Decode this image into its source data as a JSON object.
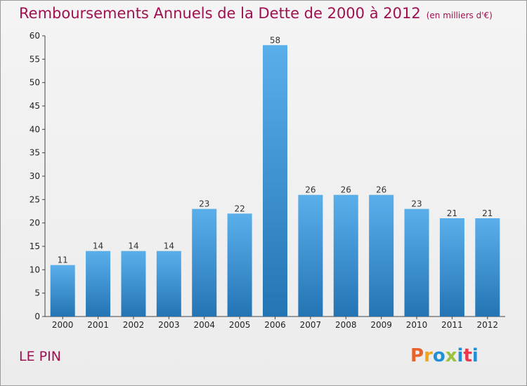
{
  "header": {
    "title": "Remboursements Annuels de la Dette de 2000 à 2012",
    "unit": "(en milliers d'€)"
  },
  "footer": {
    "commune": "LE PIN",
    "logo": "Proxiti"
  },
  "colors": {
    "title": "#a01050",
    "bar_top": "#5aafeb",
    "bar_bottom": "#2474b4",
    "logo_letters": [
      "#e8632a",
      "#f2a51c",
      "#1f8fd6",
      "#9ac23c",
      "#1f8fd6",
      "#e83a4d",
      "#1f8fd6"
    ]
  },
  "chart_data": {
    "type": "bar",
    "title": "Remboursements Annuels de la Dette de 2000 à 2012",
    "xlabel": "",
    "ylabel": "",
    "categories": [
      "2000",
      "2001",
      "2002",
      "2003",
      "2004",
      "2005",
      "2006",
      "2007",
      "2008",
      "2009",
      "2010",
      "2011",
      "2012"
    ],
    "values": [
      11,
      14,
      14,
      14,
      23,
      22,
      58,
      26,
      26,
      26,
      23,
      21,
      21
    ],
    "ylim": [
      0,
      60
    ],
    "yticks": [
      0,
      5,
      10,
      15,
      20,
      25,
      30,
      35,
      40,
      45,
      50,
      55,
      60
    ],
    "grid": false,
    "legend": "none"
  }
}
